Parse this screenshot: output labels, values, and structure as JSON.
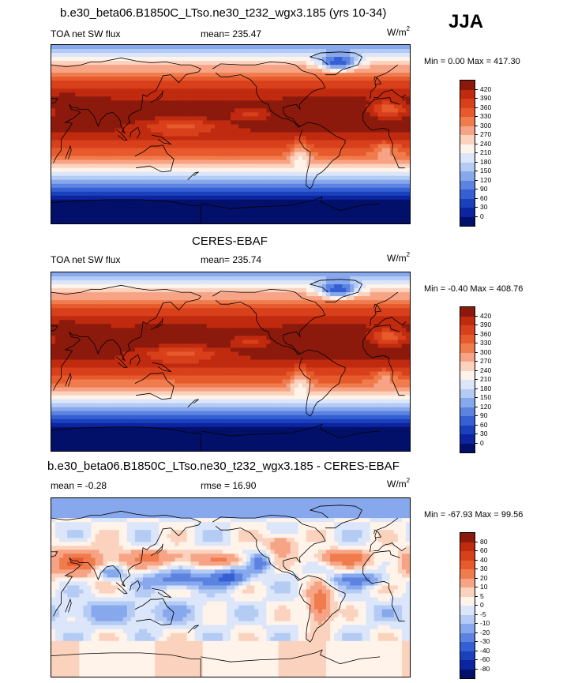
{
  "season": "JJA",
  "panels": [
    {
      "title": "b.e30_beta06.B1850C_LTso.ne30_t232_wgx3.185 (yrs 10-34)",
      "left_label": "TOA net SW flux",
      "center_label": "mean= 235.47",
      "unit_base": "W/m",
      "unit_exp": "2",
      "minmax": "Min =   0.00 Max = 417.30",
      "field": "model",
      "colorbar": {
        "labels": [
          "420",
          "390",
          "360",
          "330",
          "300",
          "270",
          "240",
          "210",
          "180",
          "150",
          "120",
          "90",
          "60",
          "30",
          "0"
        ],
        "colors": [
          "#8c1a0c",
          "#c02a0f",
          "#d8401c",
          "#e65a2c",
          "#f07c4e",
          "#f7a486",
          "#fbd2bd",
          "#fff3ea",
          "#dbe6fa",
          "#b4cbf4",
          "#87a8ec",
          "#5c83e0",
          "#3460d4",
          "#1a40bc",
          "#0c24a0",
          "#03106a"
        ]
      }
    },
    {
      "title": "CERES-EBAF",
      "left_label": "TOA net SW flux",
      "center_label": "mean= 235.74",
      "unit_base": "W/m",
      "unit_exp": "2",
      "minmax": "Min =  -0.40 Max = 408.76",
      "field": "obs",
      "colorbar": {
        "labels": [
          "420",
          "390",
          "360",
          "330",
          "300",
          "270",
          "240",
          "210",
          "180",
          "150",
          "120",
          "90",
          "60",
          "30",
          "0"
        ],
        "colors": [
          "#8c1a0c",
          "#c02a0f",
          "#d8401c",
          "#e65a2c",
          "#f07c4e",
          "#f7a486",
          "#fbd2bd",
          "#fff3ea",
          "#dbe6fa",
          "#b4cbf4",
          "#87a8ec",
          "#5c83e0",
          "#3460d4",
          "#1a40bc",
          "#0c24a0",
          "#03106a"
        ]
      }
    },
    {
      "title": "b.e30_beta06.B1850C_LTso.ne30_t232_wgx3.185 - CERES-EBAF",
      "left_label": "mean =  -0.28",
      "center_label": "rmse =  16.90",
      "unit_base": "W/m",
      "unit_exp": "2",
      "minmax": "Min = -67.93 Max =  99.56",
      "field": "diff",
      "colorbar": {
        "labels": [
          "80",
          "60",
          "40",
          "30",
          "20",
          "10",
          "5",
          "0",
          "-5",
          "-10",
          "-20",
          "-30",
          "-40",
          "-60",
          "-80"
        ],
        "colors": [
          "#8c1a0c",
          "#c02a0f",
          "#d8401c",
          "#e65a2c",
          "#f07c4e",
          "#f7a486",
          "#fbd2bd",
          "#fff3ea",
          "#dbe6fa",
          "#b4cbf4",
          "#87a8ec",
          "#5c83e0",
          "#3460d4",
          "#1a40bc",
          "#0c24a0",
          "#03106a"
        ]
      }
    }
  ]
}
